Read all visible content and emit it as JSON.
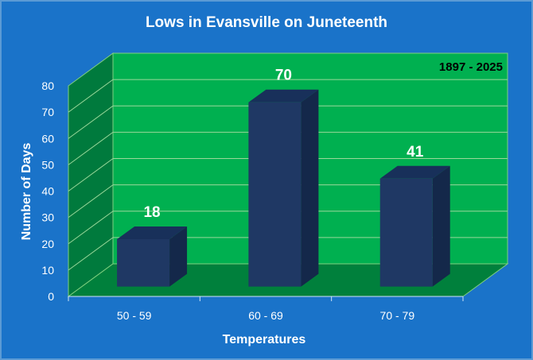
{
  "chart_data": {
    "type": "bar",
    "title": "Lows in Evansville on Juneteenth",
    "subtitle": "1897 - 2025",
    "xlabel": "Temperatures",
    "ylabel": "Number of Days",
    "categories": [
      "50 - 59",
      "60 - 69",
      "70 - 79"
    ],
    "values": [
      18,
      70,
      41
    ],
    "data_labels": [
      "18",
      "70",
      "41"
    ],
    "ylim": [
      0,
      80
    ],
    "yticks": [
      "0",
      "10",
      "20",
      "30",
      "40",
      "50",
      "60",
      "70",
      "80"
    ],
    "grid": true,
    "legend": "none",
    "colors": {
      "background": "#1874CD",
      "wall": "#00B050",
      "side_wall": "#007A3D",
      "floor": "#00803C",
      "bar_front": "#1F3864",
      "bar_top": "#18305A",
      "bar_side": "#14284A",
      "text": "#FFFFFF"
    }
  }
}
